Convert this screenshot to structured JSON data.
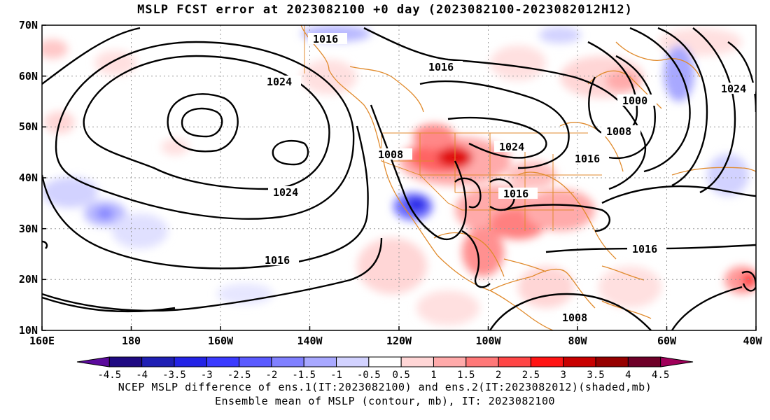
{
  "title": "MSLP FCST error at 2023082100 +0 day (2023082100-2023082012H12)",
  "map": {
    "lat_labels": [
      "70N",
      "60N",
      "50N",
      "40N",
      "30N",
      "20N",
      "10N"
    ],
    "lon_labels": [
      "160E",
      "180",
      "160W",
      "140W",
      "120W",
      "100W",
      "80W",
      "60W",
      "40W"
    ],
    "contour_labels": [
      "1016",
      "1016",
      "1024",
      "1024",
      "1008",
      "1024",
      "1016",
      "1016",
      "1016",
      "1000",
      "1008",
      "1024",
      "1016",
      "1008"
    ]
  },
  "colorbar": {
    "ticks": [
      "-4.5",
      "-4",
      "-3.5",
      "-3",
      "-2.5",
      "-2",
      "-1.5",
      "-1",
      "-0.5",
      "0.5",
      "1",
      "1.5",
      "2",
      "2.5",
      "3",
      "3.5",
      "4",
      "4.5"
    ],
    "colors": [
      "#5b0a9c",
      "#1f0a82",
      "#1f1fb4",
      "#2323e6",
      "#3a3aff",
      "#5a5aff",
      "#8080ff",
      "#a8a8ff",
      "#d2d2ff",
      "#ffffff",
      "#ffd6d6",
      "#ffaaaa",
      "#ff7878",
      "#ff4646",
      "#ff1414",
      "#c80000",
      "#960000",
      "#6e0028",
      "#a0005a"
    ]
  },
  "footer": {
    "line1": "NCEP MSLP difference of ens.1(IT:2023082100) and ens.2(IT:2023082012)(shaded,mb)",
    "line2": "Ensemble mean of MSLP (contour, mb), IT: 2023082100"
  }
}
